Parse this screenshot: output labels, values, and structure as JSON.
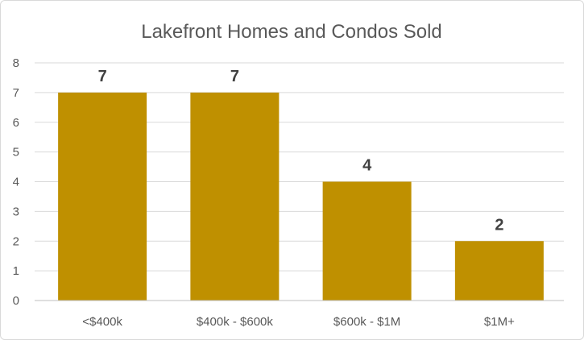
{
  "chart_data": {
    "type": "bar",
    "title": "Lakefront Homes and Condos Sold",
    "xlabel": "",
    "ylabel": "",
    "categories": [
      "<$400k",
      "$400k - $600k",
      "$600k - $1M",
      "$1M+"
    ],
    "values": [
      7,
      7,
      4,
      2
    ],
    "data_labels": [
      "7",
      "7",
      "4",
      "2"
    ],
    "ylim": [
      0,
      8
    ],
    "yticks": [
      "0",
      "1",
      "2",
      "3",
      "4",
      "5",
      "6",
      "7",
      "8"
    ],
    "grid": true,
    "legend": "none",
    "colors": {
      "bar": "#bf9000",
      "grid": "#d9d9d9",
      "axis": "#bfbfbf"
    }
  }
}
